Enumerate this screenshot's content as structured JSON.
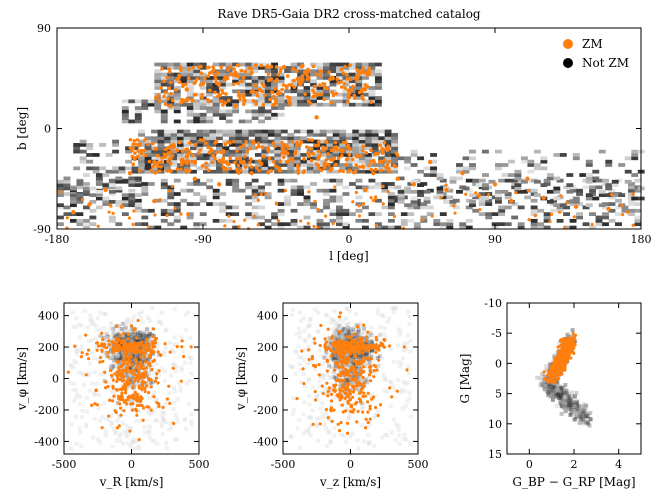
{
  "chart_data": [
    {
      "type": "scatter",
      "title": "Rave DR5-Gaia DR2 cross-matched catalog",
      "xlabel": "l [deg]",
      "ylabel": "b [deg]",
      "xlim": [
        -180,
        180
      ],
      "ylim": [
        -90,
        90
      ],
      "xticks": [
        "-180",
        "-90",
        "0",
        "90",
        "180"
      ],
      "yticks": [
        "90",
        "0",
        "-90"
      ],
      "legend": {
        "placement": "top-right",
        "entries": [
          {
            "name": "ZM",
            "color": "#ff7f0e"
          },
          {
            "name": "Not ZM",
            "color": "#000000"
          }
        ]
      },
      "background": "grayscale density of full catalog (Not ZM)",
      "series": [
        {
          "name": "ZM",
          "color": "#ff7f0e",
          "points": [
            [
              -150,
              -55
            ],
            [
              -135,
              -40
            ],
            [
              -120,
              -30
            ],
            [
              -110,
              -38
            ],
            [
              -100,
              -25
            ],
            [
              -95,
              -45
            ],
            [
              -85,
              -20
            ],
            [
              -80,
              30
            ],
            [
              -75,
              45
            ],
            [
              -70,
              20
            ],
            [
              -65,
              -30
            ],
            [
              -60,
              50
            ],
            [
              -55,
              35
            ],
            [
              -50,
              -18
            ],
            [
              -45,
              25
            ],
            [
              -40,
              55
            ],
            [
              -35,
              -28
            ],
            [
              -30,
              40
            ],
            [
              -25,
              -22
            ],
            [
              -20,
              30
            ],
            [
              -15,
              -35
            ],
            [
              -10,
              45
            ],
            [
              -5,
              -20
            ],
            [
              0,
              28
            ],
            [
              5,
              -25
            ],
            [
              10,
              35
            ],
            [
              15,
              -40
            ],
            [
              20,
              -30
            ],
            [
              30,
              -45
            ],
            [
              40,
              -50
            ],
            [
              60,
              -55
            ],
            [
              80,
              -60
            ],
            [
              100,
              -65
            ],
            [
              120,
              -62
            ],
            [
              140,
              -70
            ],
            [
              160,
              -72
            ],
            [
              -170,
              -75
            ],
            [
              -160,
              -68
            ],
            [
              -140,
              -70
            ],
            [
              -120,
              -65
            ],
            [
              -50,
              55
            ],
            [
              -70,
              50
            ],
            [
              -90,
              40
            ],
            [
              -100,
              35
            ],
            [
              -110,
              20
            ],
            [
              -60,
              -40
            ],
            [
              -40,
              -15
            ],
            [
              -20,
              10
            ],
            [
              -80,
              -50
            ],
            [
              10,
              -55
            ],
            [
              50,
              -30
            ],
            [
              70,
              -40
            ],
            [
              90,
              -50
            ],
            [
              110,
              -45
            ]
          ]
        }
      ]
    },
    {
      "type": "scatter",
      "xlabel": "v_R [km/s]",
      "ylabel": "v_φ [km/s]",
      "xlim": [
        -500,
        500
      ],
      "ylim": [
        -480,
        480
      ],
      "xticks": [
        "-500",
        "0",
        "500"
      ],
      "yticks": [
        "400",
        "200",
        "0",
        "-200",
        "-400"
      ],
      "series": [
        {
          "name": "ZM",
          "color": "#ff7f0e",
          "points": []
        }
      ]
    },
    {
      "type": "scatter",
      "xlabel": "v_z [km/s]",
      "ylabel": "v_φ [km/s]",
      "xlim": [
        -500,
        500
      ],
      "ylim": [
        -480,
        480
      ],
      "xticks": [
        "-500",
        "0",
        "500"
      ],
      "yticks": [
        "400",
        "200",
        "0",
        "-200",
        "-400"
      ],
      "series": [
        {
          "name": "ZM",
          "color": "#ff7f0e",
          "points": []
        }
      ]
    },
    {
      "type": "scatter",
      "xlabel": "G_BP − G_RP [Mag]",
      "ylabel": "G [Mag]",
      "xlim": [
        -1,
        5
      ],
      "ylim": [
        15,
        -10
      ],
      "xticks": [
        "0",
        "2",
        "4"
      ],
      "yticks": [
        "-10",
        "-5",
        "0",
        "5",
        "10",
        "15"
      ],
      "series": [
        {
          "name": "ZM",
          "color": "#ff7f0e",
          "points": []
        }
      ]
    }
  ]
}
